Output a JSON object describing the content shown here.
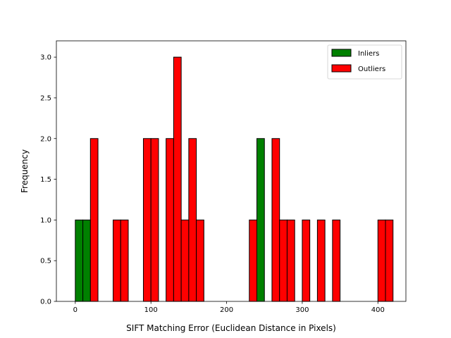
{
  "chart_data": {
    "type": "bar",
    "title": "",
    "xlabel": "SIFT Matching Error (Euclidean Distance in Pixels)",
    "ylabel": "Frequency",
    "xlim": [
      -25,
      437
    ],
    "ylim": [
      0,
      3.2
    ],
    "xticks": [
      0,
      100,
      200,
      300,
      400
    ],
    "yticks": [
      0.0,
      0.5,
      1.0,
      1.5,
      2.0,
      2.5,
      3.0
    ],
    "xtick_labels": [
      "0",
      "100",
      "200",
      "300",
      "400"
    ],
    "ytick_labels": [
      "0.0",
      "0.5",
      "1.0",
      "1.5",
      "2.0",
      "2.5",
      "3.0"
    ],
    "grid": false,
    "legend_position": "top-right",
    "bin_width": 10,
    "series": [
      {
        "name": "Inliers",
        "color": "#008000",
        "bins": [
          {
            "start": 0,
            "count": 1
          },
          {
            "start": 10,
            "count": 1
          },
          {
            "start": 130,
            "count": 1
          },
          {
            "start": 240,
            "count": 2
          },
          {
            "start": 260,
            "count": 1
          }
        ]
      },
      {
        "name": "Outliers",
        "color": "#ff0000",
        "bins": [
          {
            "start": 20,
            "count": 2
          },
          {
            "start": 50,
            "count": 1
          },
          {
            "start": 60,
            "count": 1
          },
          {
            "start": 90,
            "count": 2
          },
          {
            "start": 100,
            "count": 2
          },
          {
            "start": 120,
            "count": 2
          },
          {
            "start": 130,
            "count": 3
          },
          {
            "start": 140,
            "count": 1
          },
          {
            "start": 150,
            "count": 2
          },
          {
            "start": 160,
            "count": 1
          },
          {
            "start": 230,
            "count": 1
          },
          {
            "start": 260,
            "count": 2
          },
          {
            "start": 270,
            "count": 1
          },
          {
            "start": 280,
            "count": 1
          },
          {
            "start": 300,
            "count": 1
          },
          {
            "start": 320,
            "count": 1
          },
          {
            "start": 340,
            "count": 1
          },
          {
            "start": 400,
            "count": 1
          },
          {
            "start": 410,
            "count": 1
          }
        ]
      }
    ]
  }
}
